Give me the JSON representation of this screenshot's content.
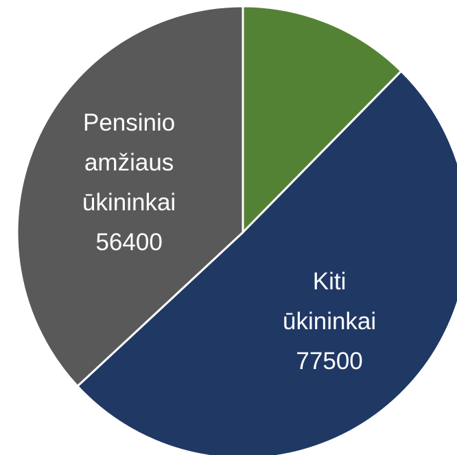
{
  "chart_data": {
    "type": "pie",
    "categories": [
      null,
      "Kiti ūkininkai",
      "Pensinio amžiaus ūkininkai"
    ],
    "values": [
      18900,
      77500,
      56400
    ],
    "colors": [
      "#548235",
      "#203864",
      "#595959"
    ]
  }
}
